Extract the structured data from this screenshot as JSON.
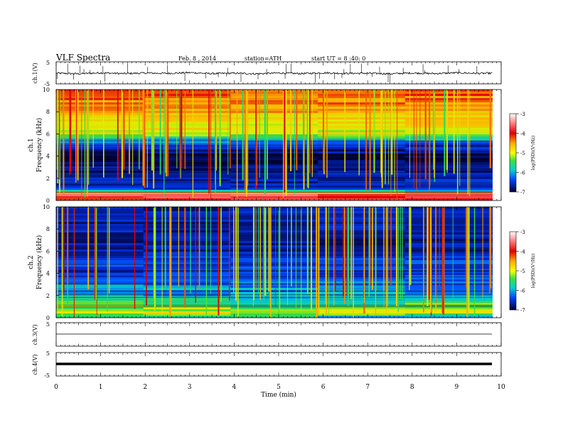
{
  "header": {
    "title": "VLF Spectra",
    "date": "Feb. 8 , 2014",
    "station": "station=ATH",
    "start": "start UT = 8 :40: 0"
  },
  "chart_data": [
    {
      "type": "line",
      "panel": "ch1-waveform",
      "ylabel": "ch.1(V)",
      "ylim": [
        -5,
        5
      ],
      "y_ticks": [
        "5",
        "-5"
      ],
      "x": [
        0,
        0.5,
        1,
        1.5,
        2,
        2.5,
        3,
        3.5,
        4,
        4.5,
        5,
        5.5,
        6,
        6.5,
        7,
        7.5,
        8,
        8.5,
        9,
        9.5,
        9.8
      ],
      "values": [
        0.0,
        -0.3,
        0.2,
        -0.2,
        0.1,
        -0.1,
        0.3,
        -0.2,
        0.0,
        -0.3,
        0.1,
        -0.2,
        0.2,
        -0.1,
        0.0,
        -0.3,
        0.1,
        -0.2,
        0.2,
        -0.1,
        0.0
      ]
    },
    {
      "type": "heatmap",
      "panel": "ch1-spectrogram",
      "ylabel_top": "ch.1",
      "ylabel": "Frequency (kHz)",
      "ylim": [
        0,
        10
      ],
      "y_ticks": [
        "0",
        "2",
        "4",
        "6",
        "8",
        "10"
      ],
      "colorbar": {
        "label": "log(PSD)(V²/Hz)",
        "ticks": [
          "-3",
          "-4",
          "-5",
          "-6",
          "-7"
        ],
        "range": [
          -7,
          -3
        ]
      },
      "freq_profile_khz": [
        0,
        0.5,
        1,
        2,
        3,
        4,
        5,
        6,
        7,
        8,
        9,
        10
      ],
      "log_psd_profile": [
        -4.0,
        -3.6,
        -6.4,
        -6.6,
        -6.8,
        -6.9,
        -6.4,
        -5.0,
        -4.8,
        -4.5,
        -4.3,
        -4.2
      ]
    },
    {
      "type": "heatmap",
      "panel": "ch2-spectrogram",
      "ylabel_top": "ch.2",
      "ylabel": "Frequency (kHz)",
      "ylim": [
        0,
        10
      ],
      "y_ticks": [
        "0",
        "2",
        "4",
        "6",
        "8",
        "10"
      ],
      "colorbar": {
        "label": "log(PSD)(V²/Hz)",
        "ticks": [
          "-3",
          "-4",
          "-5",
          "-6",
          "-7"
        ],
        "range": [
          -7,
          -3
        ]
      },
      "freq_profile_khz": [
        0,
        0.5,
        1,
        2,
        3,
        4,
        5,
        6,
        7,
        8,
        9,
        10
      ],
      "log_psd_profile": [
        -5.8,
        -5.0,
        -5.2,
        -5.8,
        -6.0,
        -6.4,
        -6.2,
        -6.6,
        -6.7,
        -6.6,
        -6.6,
        -6.6
      ]
    },
    {
      "type": "line",
      "panel": "ch3-waveform",
      "ylabel": "ch.3(V)",
      "ylim": [
        -5,
        5
      ],
      "y_ticks": [
        "5"
      ],
      "x": [
        0,
        9.8
      ],
      "values": [
        0,
        0
      ]
    },
    {
      "type": "line",
      "panel": "ch4-waveform",
      "ylabel": "ch.4(V)",
      "ylim": [
        -5,
        5
      ],
      "y_ticks": [
        "5",
        "-5"
      ],
      "x": [
        0,
        9.8
      ],
      "values": [
        0,
        0
      ]
    }
  ],
  "x_axis": {
    "label": "Time (min)",
    "xlim": [
      0,
      10
    ],
    "ticks": [
      "0",
      "1",
      "2",
      "3",
      "4",
      "5",
      "6",
      "7",
      "8",
      "9",
      "10"
    ]
  }
}
